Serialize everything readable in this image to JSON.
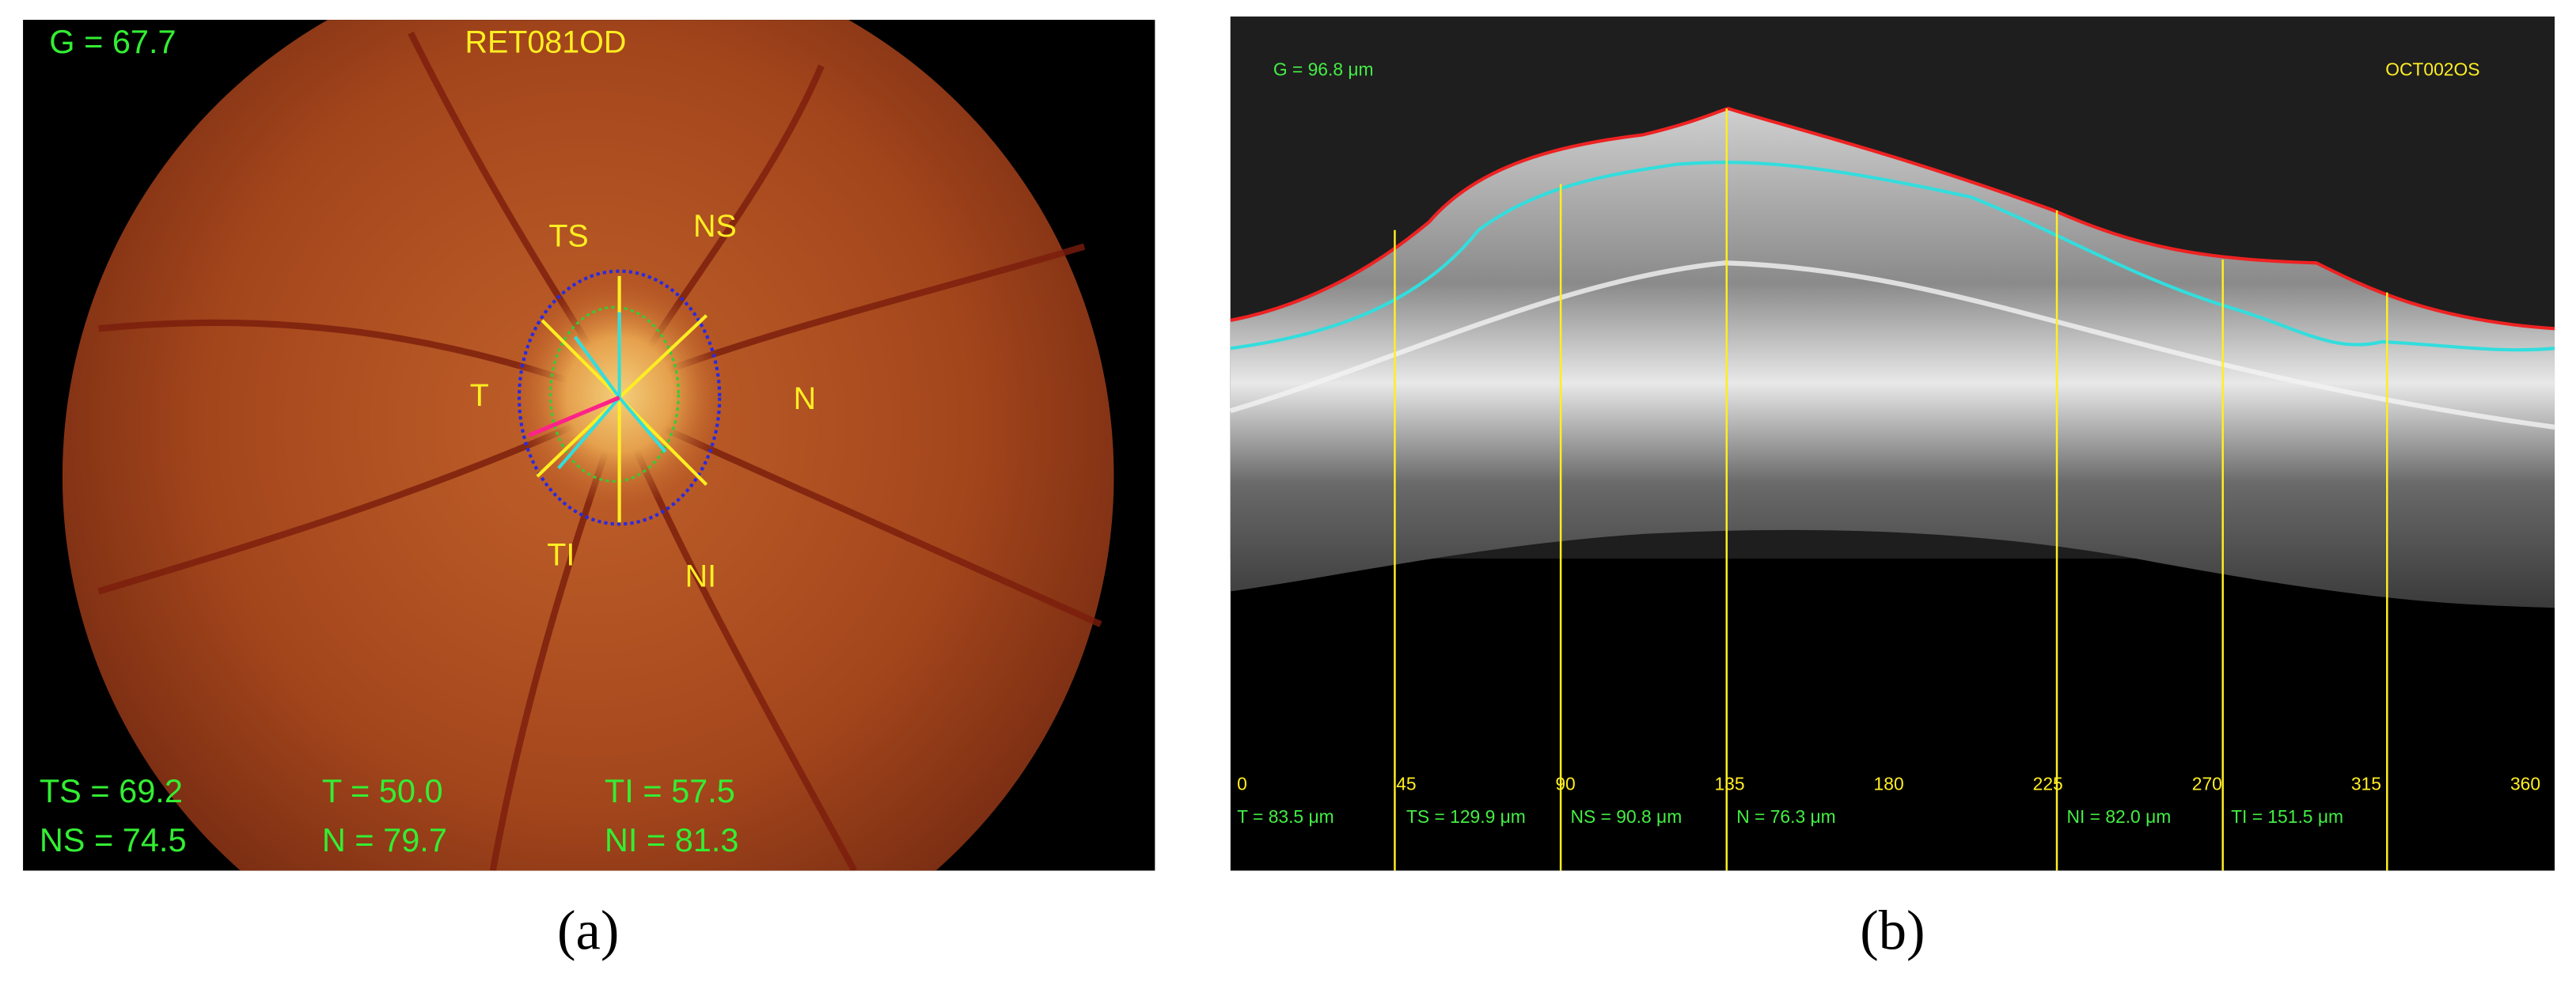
{
  "panel_a": {
    "global": "G = 67.7",
    "image_id": "RET081OD",
    "sector_labels": [
      "TS",
      "NS",
      "T",
      "N",
      "TI",
      "NI"
    ],
    "measurements": [
      "TS = 69.2",
      "NS = 74.5",
      "T = 50.0",
      "N = 79.7",
      "TI = 57.5",
      "NI = 81.3"
    ],
    "caption": "(a)"
  },
  "panel_b": {
    "global": "G = 96.8 μm",
    "image_id": "OCT002OS",
    "angles": [
      0,
      45,
      90,
      135,
      180,
      225,
      270,
      315,
      360
    ],
    "measurements": [
      "T = 83.5 μm",
      "TS = 129.9 μm",
      "NS = 90.8 μm",
      "N = 76.3 μm",
      "NI = 82.0 μm",
      "TI = 151.5 μm"
    ],
    "caption": "(b)"
  }
}
